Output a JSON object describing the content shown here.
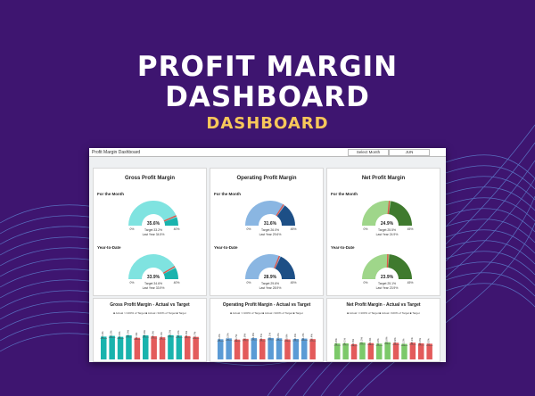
{
  "hero": {
    "line1": "PROFIT MARGIN",
    "line2": "DASHBOARD",
    "line3": "DASHBOARD"
  },
  "sheet": {
    "title": "Profit Margin Dashboard",
    "select_label": "Select Month",
    "month": "JUN"
  },
  "gauge_labels": {
    "month": "For the Month",
    "ytd": "Year-to-Date",
    "min": "0%",
    "max": "40%",
    "max_npm": "40%",
    "max_opm": "45%"
  },
  "cards": [
    {
      "title": "Gross Profit Margin",
      "month": {
        "value": "35.6%",
        "target": "Target 33.2%",
        "last": "Last Year 34.5%",
        "pct": 0.89
      },
      "ytd": {
        "value": "33.9%",
        "target": "Target 34.6%",
        "last": "Last Year 33.9%",
        "pct": 0.85
      },
      "max": "40%",
      "colors": [
        "#7fe3e0",
        "#19b3ad"
      ]
    },
    {
      "title": "Operating Profit Margin",
      "month": {
        "value": "31.6%",
        "target": "Target 26.0%",
        "last": "Last Year 29.6%",
        "pct": 0.7
      },
      "ytd": {
        "value": "28.9%",
        "target": "Target 29.6%",
        "last": "Last Year 28.9%",
        "pct": 0.64
      },
      "max": "45%",
      "colors": [
        "#8ab6e2",
        "#1d4f86"
      ]
    },
    {
      "title": "Net Profit Margin",
      "month": {
        "value": "24.9%",
        "target": "Target 25.5%",
        "last": "Last Year 24.9%",
        "pct": 0.55
      },
      "ytd": {
        "value": "23.9%",
        "target": "Target 25.1%",
        "last": "Last Year 23.9%",
        "pct": 0.53
      },
      "max": "45%",
      "colors": [
        "#9fd68a",
        "#3f7a2e"
      ]
    }
  ],
  "bar_cards": [
    {
      "title": "Gross Profit Margin - Actual vs Target",
      "legend": "■ Actual >=100% of Target   ■ Actual <100% of Target   ■ Target",
      "values": [
        34.1,
        35.2,
        33.8,
        36.0,
        32.4,
        35.9,
        34.6,
        33.1,
        36.2,
        35.6,
        34.9,
        33.7
      ],
      "colors": [
        "#19b3ad",
        "#19b3ad",
        "#19b3ad",
        "#19b3ad",
        "#e35b5b",
        "#19b3ad",
        "#e35b5b",
        "#e35b5b",
        "#19b3ad",
        "#19b3ad",
        "#e35b5b",
        "#e35b5b"
      ]
    },
    {
      "title": "Operating Profit Margin - Actual vs Target",
      "legend": "■ Actual >=100% of Target   ■ Actual <100% of Target   ■ Target",
      "values": [
        30.2,
        31.5,
        29.7,
        30.8,
        31.9,
        30.5,
        32.1,
        31.6,
        29.9,
        30.6,
        31.2,
        30.4
      ],
      "colors": [
        "#5b9bd5",
        "#5b9bd5",
        "#e35b5b",
        "#e35b5b",
        "#5b9bd5",
        "#e35b5b",
        "#5b9bd5",
        "#5b9bd5",
        "#e35b5b",
        "#5b9bd5",
        "#5b9bd5",
        "#e35b5b"
      ]
    },
    {
      "title": "Net Profit Margin - Actual vs Target",
      "legend": "■ Actual >=100% of Target   ■ Actual <100% of Target   ■ Target",
      "values": [
        23.8,
        24.1,
        22.9,
        25.3,
        24.4,
        23.6,
        25.8,
        24.9,
        23.2,
        25.1,
        24.0,
        23.5
      ],
      "colors": [
        "#7cc96a",
        "#7cc96a",
        "#e35b5b",
        "#7cc96a",
        "#e35b5b",
        "#7cc96a",
        "#7cc96a",
        "#e35b5b",
        "#7cc96a",
        "#e35b5b",
        "#e35b5b",
        "#e35b5b"
      ]
    }
  ]
}
